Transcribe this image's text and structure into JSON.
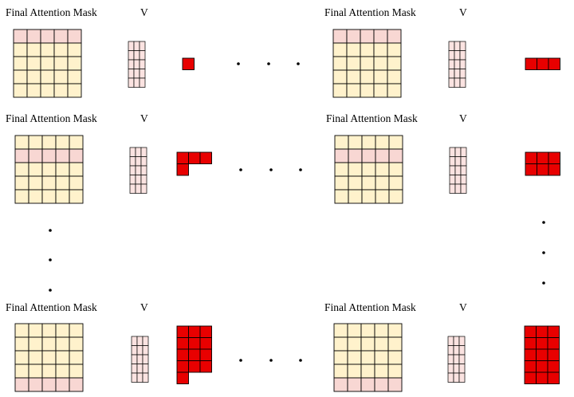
{
  "panels": [
    {
      "title": "Final Attention Mask",
      "v_label": "V",
      "highlight_row": 0,
      "output_cells": [
        [
          0,
          0
        ]
      ]
    },
    {
      "title": "Final Attention Mask",
      "v_label": "V",
      "highlight_row": 0,
      "output_cells": [
        [
          0,
          0
        ],
        [
          0,
          1
        ],
        [
          0,
          2
        ]
      ]
    },
    {
      "title": "Final Attention Mask",
      "v_label": "V",
      "highlight_row": 1,
      "output_cells": [
        [
          0,
          0
        ],
        [
          0,
          1
        ],
        [
          0,
          2
        ],
        [
          1,
          0
        ]
      ]
    },
    {
      "title": "Final Attention Mask",
      "v_label": "V",
      "highlight_row": 1,
      "output_cells": [
        [
          0,
          0
        ],
        [
          0,
          1
        ],
        [
          0,
          2
        ],
        [
          1,
          0
        ],
        [
          1,
          1
        ],
        [
          1,
          2
        ]
      ]
    },
    {
      "title": "Final Attention Mask",
      "v_label": "V",
      "highlight_row": 4,
      "output_cells": [
        [
          0,
          0
        ],
        [
          0,
          1
        ],
        [
          0,
          2
        ],
        [
          1,
          0
        ],
        [
          1,
          1
        ],
        [
          1,
          2
        ],
        [
          2,
          0
        ],
        [
          2,
          1
        ],
        [
          2,
          2
        ],
        [
          3,
          0
        ],
        [
          3,
          1
        ],
        [
          3,
          2
        ],
        [
          4,
          0
        ]
      ]
    },
    {
      "title": "Final Attention Mask",
      "v_label": "V",
      "highlight_row": 4,
      "output_cells": [
        [
          0,
          0
        ],
        [
          0,
          1
        ],
        [
          0,
          2
        ],
        [
          1,
          0
        ],
        [
          1,
          1
        ],
        [
          1,
          2
        ],
        [
          2,
          0
        ],
        [
          2,
          1
        ],
        [
          2,
          2
        ],
        [
          3,
          0
        ],
        [
          3,
          1
        ],
        [
          3,
          2
        ],
        [
          4,
          0
        ],
        [
          4,
          1
        ],
        [
          4,
          2
        ]
      ]
    }
  ],
  "colors": {
    "mask_cell": "#fff2cc",
    "mask_highlight": "#f8d7d3",
    "v_cell": "#fbe3e1",
    "output_cell": "#e80000",
    "stroke": "#000000"
  }
}
